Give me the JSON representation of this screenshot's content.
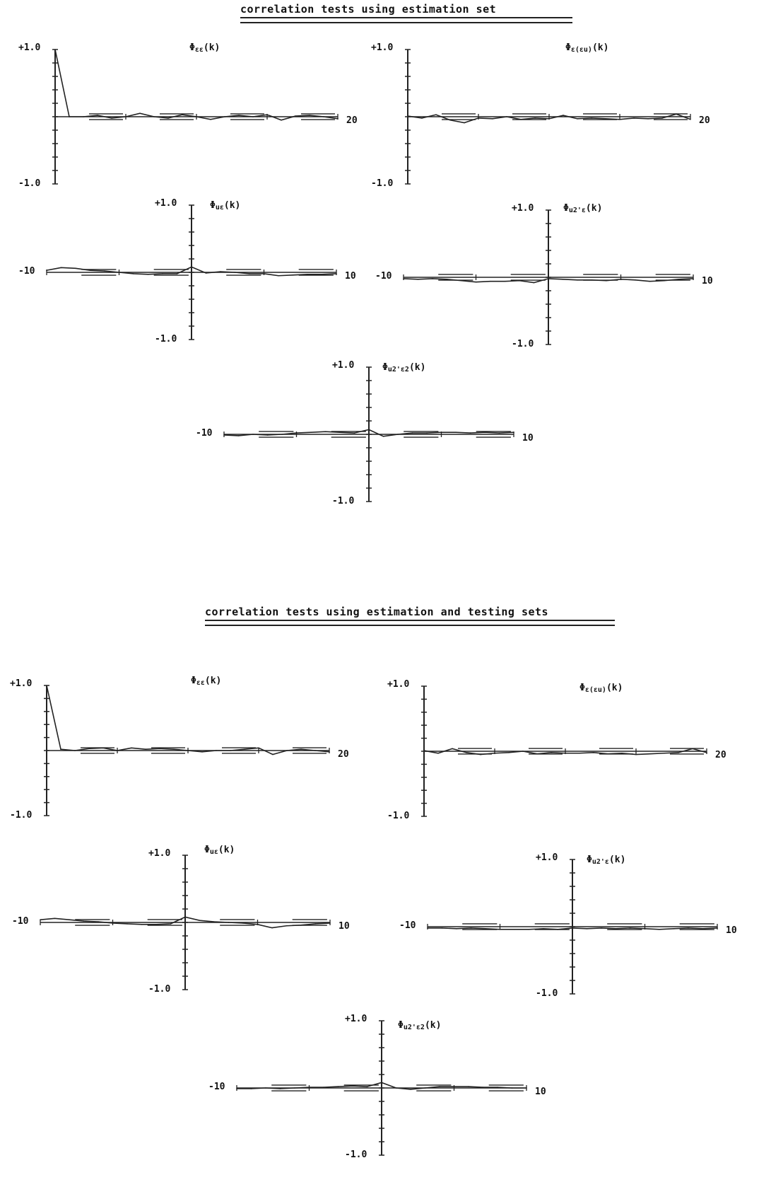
{
  "sections": [
    {
      "title": "correlation tests using estimation set",
      "panels": [
        {
          "label": "Φεε(k)",
          "sym": "Φ",
          "sub": "εε",
          "arg": "(k)",
          "ymax": "+1.0",
          "ymin": "-1.0",
          "xmin": "",
          "xmax": "20"
        },
        {
          "label": "Φε(εu)(k)",
          "sym": "Φ",
          "sub": "ε(εu)",
          "arg": "(k)",
          "ymax": "+1.0",
          "ymin": "-1.0",
          "xmin": "",
          "xmax": "20"
        },
        {
          "label": "Φuε(k)",
          "sym": "Φ",
          "sub": "uε",
          "arg": "(k)",
          "ymax": "+1.0",
          "ymin": "-1.0",
          "xmin": "-10",
          "xmax": "10"
        },
        {
          "label": "Φu2'ε(k)",
          "sym": "Φ",
          "sub": "u2'ε",
          "arg": "(k)",
          "ymax": "+1.0",
          "ymin": "-1.0",
          "xmin": "-10",
          "xmax": "10"
        },
        {
          "label": "Φu2'ε2(k)",
          "sym": "Φ",
          "sub": "u2'ε2",
          "arg": "(k)",
          "ymax": "+1.0",
          "ymin": "-1.0",
          "xmin": "-10",
          "xmax": "10"
        }
      ]
    },
    {
      "title": "correlation tests using estimation and testing sets",
      "panels": [
        {
          "label": "Φεε(k)",
          "sym": "Φ",
          "sub": "εε",
          "arg": "(k)",
          "ymax": "+1.0",
          "ymin": "-1.0",
          "xmin": "",
          "xmax": "20"
        },
        {
          "label": "Φε(εu)(k)",
          "sym": "Φ",
          "sub": "ε(εu)",
          "arg": "(k)",
          "ymax": "+1.0",
          "ymin": "-1.0",
          "xmin": "",
          "xmax": "20"
        },
        {
          "label": "Φuε(k)",
          "sym": "Φ",
          "sub": "uε",
          "arg": "(k)",
          "ymax": "+1.0",
          "ymin": "-1.0",
          "xmin": "-10",
          "xmax": "10"
        },
        {
          "label": "Φu2'ε(k)",
          "sym": "Φ",
          "sub": "u2'ε",
          "arg": "(k)",
          "ymax": "+1.0",
          "ymin": "-1.0",
          "xmin": "-10",
          "xmax": "10"
        },
        {
          "label": "Φu2'ε2(k)",
          "sym": "Φ",
          "sub": "u2'ε2",
          "arg": "(k)",
          "ymax": "+1.0",
          "ymin": "-1.0",
          "xmin": "-10",
          "xmax": "10"
        }
      ]
    }
  ],
  "chart_data": [
    {
      "type": "line",
      "title": "Φεε(k)",
      "x": [
        0,
        1,
        2,
        3,
        4,
        5,
        6,
        7,
        8,
        9,
        10,
        11,
        12,
        13,
        14,
        15,
        16,
        17,
        18,
        19,
        20
      ],
      "values": [
        1.0,
        0.0,
        0.0,
        0.02,
        -0.02,
        0.0,
        0.05,
        0.0,
        -0.02,
        0.03,
        0.0,
        -0.04,
        0.0,
        0.02,
        0.0,
        0.03,
        -0.05,
        0.01,
        0.02,
        0.0,
        -0.03
      ],
      "confidence_band": 0.06,
      "xlim": [
        0,
        20
      ],
      "ylim": [
        -1,
        1
      ]
    },
    {
      "type": "line",
      "title": "Φε(εu)(k)",
      "x": [
        0,
        1,
        2,
        3,
        4,
        5,
        6,
        7,
        8,
        9,
        10,
        11,
        12,
        13,
        14,
        15,
        16,
        17,
        18,
        19,
        20
      ],
      "values": [
        0.01,
        -0.02,
        0.03,
        -0.05,
        -0.09,
        -0.02,
        -0.03,
        0.0,
        -0.04,
        -0.02,
        -0.03,
        0.02,
        -0.03,
        -0.02,
        -0.03,
        -0.04,
        -0.02,
        -0.03,
        -0.02,
        0.04,
        -0.04
      ],
      "confidence_band": 0.06,
      "xlim": [
        0,
        20
      ],
      "ylim": [
        -1,
        1
      ]
    },
    {
      "type": "line",
      "title": "Φuε(k)",
      "x": [
        -10,
        -9,
        -8,
        -7,
        -6,
        -5,
        -4,
        -3,
        -2,
        -1,
        0,
        1,
        2,
        3,
        4,
        5,
        6,
        7,
        8,
        9,
        10
      ],
      "values": [
        0.03,
        0.07,
        0.06,
        0.03,
        0.02,
        0.0,
        -0.02,
        -0.03,
        -0.02,
        -0.02,
        0.08,
        -0.01,
        0.01,
        0.0,
        -0.02,
        -0.02,
        -0.05,
        -0.04,
        -0.03,
        -0.03,
        -0.02
      ],
      "confidence_band": 0.06,
      "xlim": [
        -10,
        10
      ],
      "ylim": [
        -1,
        1
      ]
    },
    {
      "type": "line",
      "title": "Φu2'ε(k)",
      "x": [
        -10,
        -9,
        -8,
        -7,
        -6,
        -5,
        -4,
        -3,
        -2,
        -1,
        0,
        1,
        2,
        3,
        4,
        5,
        6,
        7,
        8,
        9,
        10
      ],
      "values": [
        -0.02,
        -0.03,
        -0.02,
        -0.03,
        -0.05,
        -0.07,
        -0.06,
        -0.06,
        -0.05,
        -0.08,
        -0.02,
        -0.03,
        -0.04,
        -0.04,
        -0.05,
        -0.03,
        -0.04,
        -0.06,
        -0.05,
        -0.03,
        -0.02
      ],
      "confidence_band": 0.06,
      "xlim": [
        -10,
        10
      ],
      "ylim": [
        -1,
        1
      ]
    },
    {
      "type": "line",
      "title": "Φu2'ε2(k)",
      "x": [
        -10,
        -9,
        -8,
        -7,
        -6,
        -5,
        -4,
        -3,
        -2,
        -1,
        0,
        1,
        2,
        3,
        4,
        5,
        6,
        7,
        8,
        9,
        10
      ],
      "values": [
        -0.01,
        -0.02,
        0.0,
        -0.01,
        0.0,
        0.02,
        0.03,
        0.04,
        0.03,
        0.02,
        0.07,
        -0.03,
        0.0,
        0.02,
        0.02,
        0.03,
        0.03,
        0.02,
        0.03,
        0.02,
        0.03
      ],
      "confidence_band": 0.06,
      "xlim": [
        -10,
        10
      ],
      "ylim": [
        -1,
        1
      ]
    },
    {
      "type": "line",
      "title": "Φεε(k)",
      "x": [
        0,
        1,
        2,
        3,
        4,
        5,
        6,
        7,
        8,
        9,
        10,
        11,
        12,
        13,
        14,
        15,
        16,
        17,
        18,
        19,
        20
      ],
      "values": [
        1.0,
        0.02,
        0.0,
        0.03,
        0.04,
        0.0,
        0.04,
        0.02,
        0.03,
        0.02,
        0.0,
        -0.02,
        0.0,
        0.0,
        0.02,
        0.04,
        -0.06,
        0.0,
        0.02,
        0.0,
        -0.02
      ],
      "confidence_band": 0.06,
      "xlim": [
        0,
        20
      ],
      "ylim": [
        -1,
        1
      ]
    },
    {
      "type": "line",
      "title": "Φε(εu)(k)",
      "x": [
        0,
        1,
        2,
        3,
        4,
        5,
        6,
        7,
        8,
        9,
        10,
        11,
        12,
        13,
        14,
        15,
        16,
        17,
        18,
        19,
        20
      ],
      "values": [
        0.01,
        -0.03,
        0.04,
        -0.02,
        -0.05,
        -0.03,
        -0.02,
        0.0,
        -0.04,
        -0.02,
        -0.03,
        -0.03,
        -0.02,
        -0.04,
        -0.03,
        -0.05,
        -0.04,
        -0.03,
        -0.02,
        0.04,
        -0.02
      ],
      "confidence_band": 0.06,
      "xlim": [
        0,
        20
      ],
      "ylim": [
        -1,
        1
      ]
    },
    {
      "type": "line",
      "title": "Φuε(k)",
      "x": [
        -10,
        -9,
        -8,
        -7,
        -6,
        -5,
        -4,
        -3,
        -2,
        -1,
        0,
        1,
        2,
        3,
        4,
        5,
        6,
        7,
        8,
        9,
        10
      ],
      "values": [
        0.04,
        0.06,
        0.04,
        0.02,
        0.01,
        -0.01,
        -0.02,
        -0.03,
        -0.03,
        -0.02,
        0.08,
        0.03,
        0.01,
        0.0,
        -0.01,
        -0.03,
        -0.08,
        -0.05,
        -0.04,
        -0.02,
        -0.01
      ],
      "confidence_band": 0.06,
      "xlim": [
        -10,
        10
      ],
      "ylim": [
        -1,
        1
      ]
    },
    {
      "type": "line",
      "title": "Φu2'ε(k)",
      "x": [
        -10,
        -9,
        -8,
        -7,
        -6,
        -5,
        -4,
        -3,
        -2,
        -1,
        0,
        1,
        2,
        3,
        4,
        5,
        6,
        7,
        8,
        9,
        10
      ],
      "values": [
        -0.02,
        -0.02,
        -0.03,
        -0.02,
        -0.03,
        -0.04,
        -0.04,
        -0.04,
        -0.03,
        -0.04,
        -0.02,
        -0.03,
        -0.02,
        -0.03,
        -0.02,
        -0.03,
        -0.04,
        -0.03,
        -0.02,
        -0.03,
        -0.02
      ],
      "confidence_band": 0.06,
      "xlim": [
        -10,
        10
      ],
      "ylim": [
        -1,
        1
      ]
    },
    {
      "type": "line",
      "title": "Φu2'ε2(k)",
      "x": [
        -10,
        -9,
        -8,
        -7,
        -6,
        -5,
        -4,
        -3,
        -2,
        -1,
        0,
        1,
        2,
        3,
        4,
        5,
        6,
        7,
        8,
        9,
        10
      ],
      "values": [
        -0.01,
        -0.01,
        0.0,
        -0.01,
        0.0,
        0.01,
        0.01,
        0.02,
        0.03,
        0.02,
        0.08,
        0.0,
        -0.02,
        0.0,
        0.02,
        0.02,
        0.02,
        0.01,
        0.01,
        0.0,
        0.0
      ],
      "confidence_band": 0.06,
      "xlim": [
        -10,
        10
      ],
      "ylim": [
        -1,
        1
      ]
    }
  ]
}
